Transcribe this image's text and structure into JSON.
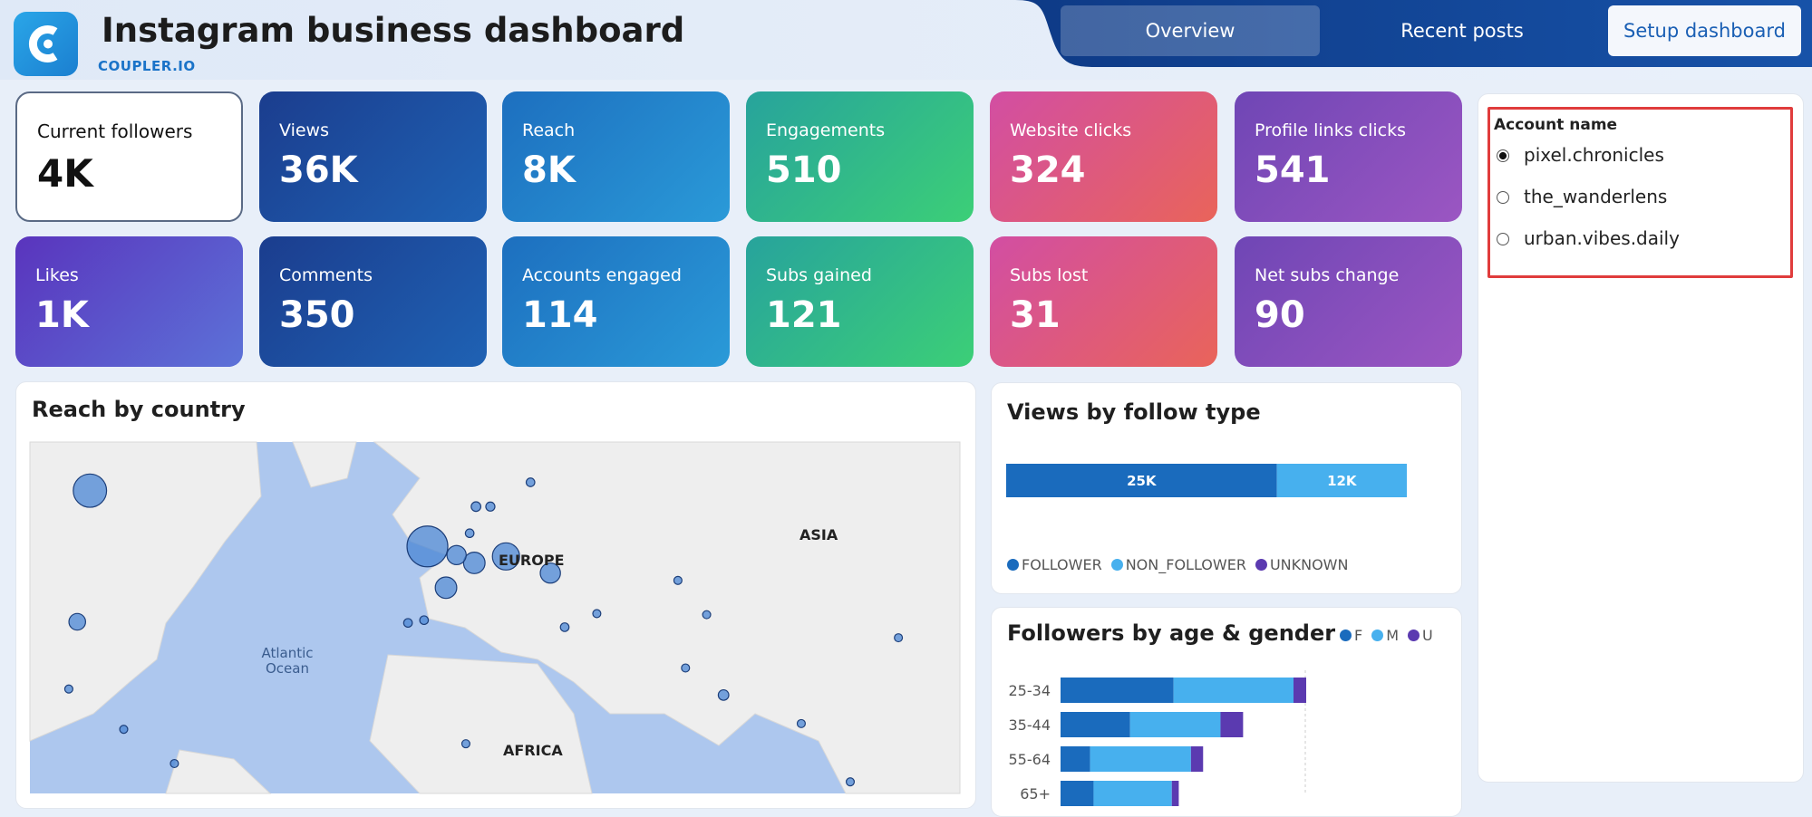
{
  "header": {
    "title": "Instagram business dashboard",
    "subtitle": "COUPLER.IO"
  },
  "tabs": [
    "Overview",
    "Recent posts",
    "Setup dashboard"
  ],
  "active_tab": 0,
  "kpis": [
    {
      "label": "Current followers",
      "value": "4K"
    },
    {
      "label": "Views",
      "value": "36K"
    },
    {
      "label": "Reach",
      "value": "8K"
    },
    {
      "label": "Engagements",
      "value": "510"
    },
    {
      "label": "Website clicks",
      "value": "324"
    },
    {
      "label": "Profile links clicks",
      "value": "541"
    },
    {
      "label": "Likes",
      "value": "1K"
    },
    {
      "label": "Comments",
      "value": "350"
    },
    {
      "label": "Accounts engaged",
      "value": "114"
    },
    {
      "label": "Subs gained",
      "value": "121"
    },
    {
      "label": "Subs lost",
      "value": "31"
    },
    {
      "label": "Net subs change",
      "value": "90"
    }
  ],
  "filter": {
    "title": "Account name",
    "options": [
      "pixel.chronicles",
      "the_wanderlens",
      "urban.vibes.daily"
    ],
    "selected": 0
  },
  "charts": [
    {
      "type": "bubble-map",
      "title": "Reach by country",
      "region_labels": [
        "EUROPE",
        "ASIA",
        "Atlantic Ocean",
        "AFRICA"
      ],
      "color": "#4a86d4",
      "points": [
        {
          "lon": -0.1,
          "lat": 51.5,
          "value": 900
        },
        {
          "lon": -80,
          "lat": 59,
          "value": 600
        },
        {
          "lon": 18.5,
          "lat": 50,
          "value": 400
        },
        {
          "lon": 4.3,
          "lat": 45,
          "value": 250
        },
        {
          "lon": 11,
          "lat": 49,
          "value": 250
        },
        {
          "lon": 29,
          "lat": 47.4,
          "value": 220
        },
        {
          "lon": 6.8,
          "lat": 50.2,
          "value": 200
        },
        {
          "lon": -83,
          "lat": 39,
          "value": 150
        },
        {
          "lon": 24.3,
          "lat": 60,
          "value": 40
        },
        {
          "lon": 11.4,
          "lat": 57,
          "value": 50
        },
        {
          "lon": 14.8,
          "lat": 57,
          "value": 45
        },
        {
          "lon": 9.9,
          "lat": 53.4,
          "value": 40
        },
        {
          "lon": -4.7,
          "lat": 38.8,
          "value": 40
        },
        {
          "lon": -0.9,
          "lat": 39.3,
          "value": 40
        },
        {
          "lon": 32.4,
          "lat": 38,
          "value": 40
        },
        {
          "lon": 59.2,
          "lat": 46.2,
          "value": 35
        },
        {
          "lon": 66,
          "lat": 40.3,
          "value": 35
        },
        {
          "lon": 70,
          "lat": 24.3,
          "value": 60
        },
        {
          "lon": 61,
          "lat": 30,
          "value": 35
        },
        {
          "lon": 40,
          "lat": 40.5,
          "value": 35
        },
        {
          "lon": 111.4,
          "lat": 36,
          "value": 35
        },
        {
          "lon": 88.4,
          "lat": 18,
          "value": 35
        },
        {
          "lon": 9,
          "lat": 13.4,
          "value": 35
        },
        {
          "lon": -60,
          "lat": 8.8,
          "value": 35
        },
        {
          "lon": -72,
          "lat": 16.7,
          "value": 35
        },
        {
          "lon": -85,
          "lat": 25.6,
          "value": 35
        },
        {
          "lon": 100,
          "lat": 4.5,
          "value": 35
        }
      ]
    },
    {
      "type": "stacked-bar",
      "title": "Views by follow type",
      "series": [
        {
          "name": "FOLLOWER",
          "color": "#1a6bbd",
          "values": [
            25000
          ],
          "value_labels": [
            "25K"
          ]
        },
        {
          "name": "NON_FOLLOWER",
          "color": "#47b0ee",
          "values": [
            12000
          ],
          "value_labels": [
            "12K"
          ]
        },
        {
          "name": "UNKNOWN",
          "color": "#5b3ab0",
          "values": [
            0
          ]
        }
      ]
    },
    {
      "type": "stacked-hbar",
      "title": "Followers by age & gender",
      "categories": [
        "25-34",
        "35-44",
        "55-64",
        "65+"
      ],
      "series": [
        {
          "name": "F",
          "color": "#1a6bbd",
          "values": [
            650,
            400,
            170,
            190
          ]
        },
        {
          "name": "M",
          "color": "#47b0ee",
          "values": [
            690,
            520,
            580,
            450
          ]
        },
        {
          "name": "U",
          "color": "#5b3ab0",
          "values": [
            73,
            130,
            70,
            40
          ]
        }
      ]
    }
  ]
}
